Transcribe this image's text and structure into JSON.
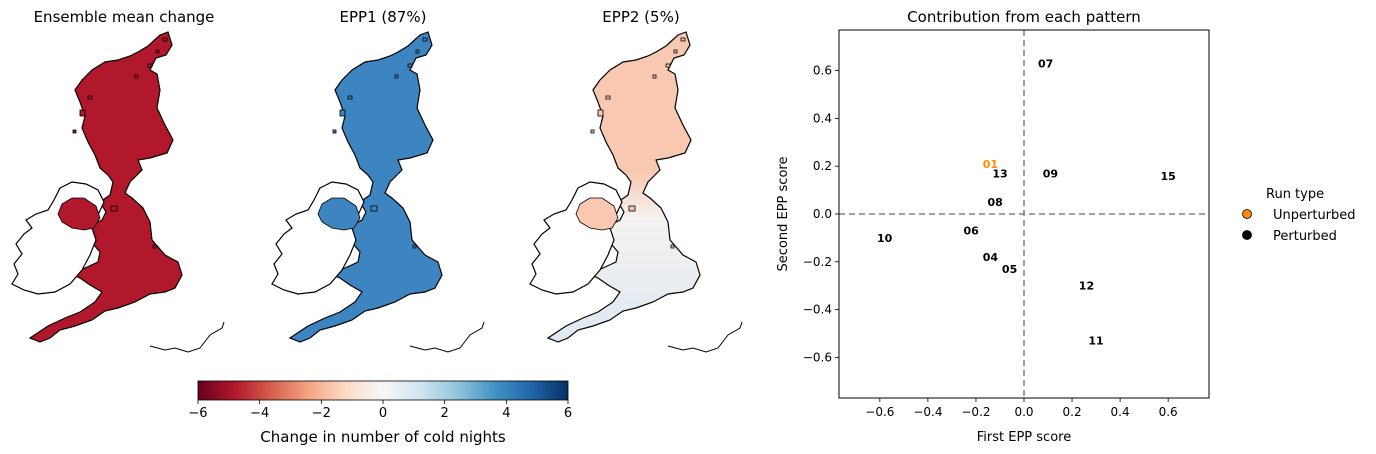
{
  "figure": {
    "map_titles": [
      "Ensemble mean change",
      "EPP1 (87%)",
      "EPP2 (5%)"
    ],
    "colorbar": {
      "label": "Change in number of cold nights",
      "ticks": [
        -6,
        -4,
        -2,
        0,
        2,
        4,
        6
      ],
      "range": [
        -6,
        6
      ],
      "colors": [
        "#67001f",
        "#b2182b",
        "#d6604d",
        "#f4a582",
        "#fddbc7",
        "#f7f7f7",
        "#d1e5f0",
        "#92c5de",
        "#4393c3",
        "#2166ac",
        "#053061"
      ]
    },
    "map_tones": {
      "ensemble_mean_change": "#b2182b",
      "epp1": "#3d85c0",
      "epp2_north": "#f8c8b0",
      "epp2_south": "#dde9f2",
      "coast": "#000000"
    }
  },
  "chart_data": {
    "type": "scatter",
    "title": "Contribution from each pattern",
    "xlabel": "First EPP score",
    "ylabel": "Second EPP score",
    "xlim": [
      -0.77,
      0.77
    ],
    "ylim": [
      -0.77,
      0.77
    ],
    "xticks": [
      -0.6,
      -0.4,
      -0.2,
      0.0,
      0.2,
      0.4,
      0.6
    ],
    "yticks": [
      -0.6,
      -0.4,
      -0.2,
      0.0,
      0.2,
      0.4,
      0.6
    ],
    "reference_lines": {
      "x": 0.0,
      "y": 0.0,
      "style": "dashed",
      "color": "#808080"
    },
    "grid": false,
    "legend": {
      "title": "Run type",
      "placement": "outside right",
      "entries": [
        {
          "label": "Unperturbed",
          "color": "#ff8c00"
        },
        {
          "label": "Perturbed",
          "color": "#000000"
        }
      ]
    },
    "points": [
      {
        "label": "01",
        "x": -0.14,
        "y": 0.21,
        "run_type": "Unperturbed"
      },
      {
        "label": "04",
        "x": -0.14,
        "y": -0.18,
        "run_type": "Perturbed"
      },
      {
        "label": "05",
        "x": -0.06,
        "y": -0.23,
        "run_type": "Perturbed"
      },
      {
        "label": "06",
        "x": -0.22,
        "y": -0.07,
        "run_type": "Perturbed"
      },
      {
        "label": "07",
        "x": 0.09,
        "y": 0.63,
        "run_type": "Perturbed"
      },
      {
        "label": "08",
        "x": -0.12,
        "y": 0.05,
        "run_type": "Perturbed"
      },
      {
        "label": "09",
        "x": 0.11,
        "y": 0.17,
        "run_type": "Perturbed"
      },
      {
        "label": "10",
        "x": -0.58,
        "y": -0.1,
        "run_type": "Perturbed"
      },
      {
        "label": "11",
        "x": 0.3,
        "y": -0.53,
        "run_type": "Perturbed"
      },
      {
        "label": "12",
        "x": 0.26,
        "y": -0.3,
        "run_type": "Perturbed"
      },
      {
        "label": "13",
        "x": -0.1,
        "y": 0.17,
        "run_type": "Perturbed"
      },
      {
        "label": "15",
        "x": 0.6,
        "y": 0.16,
        "run_type": "Perturbed"
      }
    ]
  }
}
